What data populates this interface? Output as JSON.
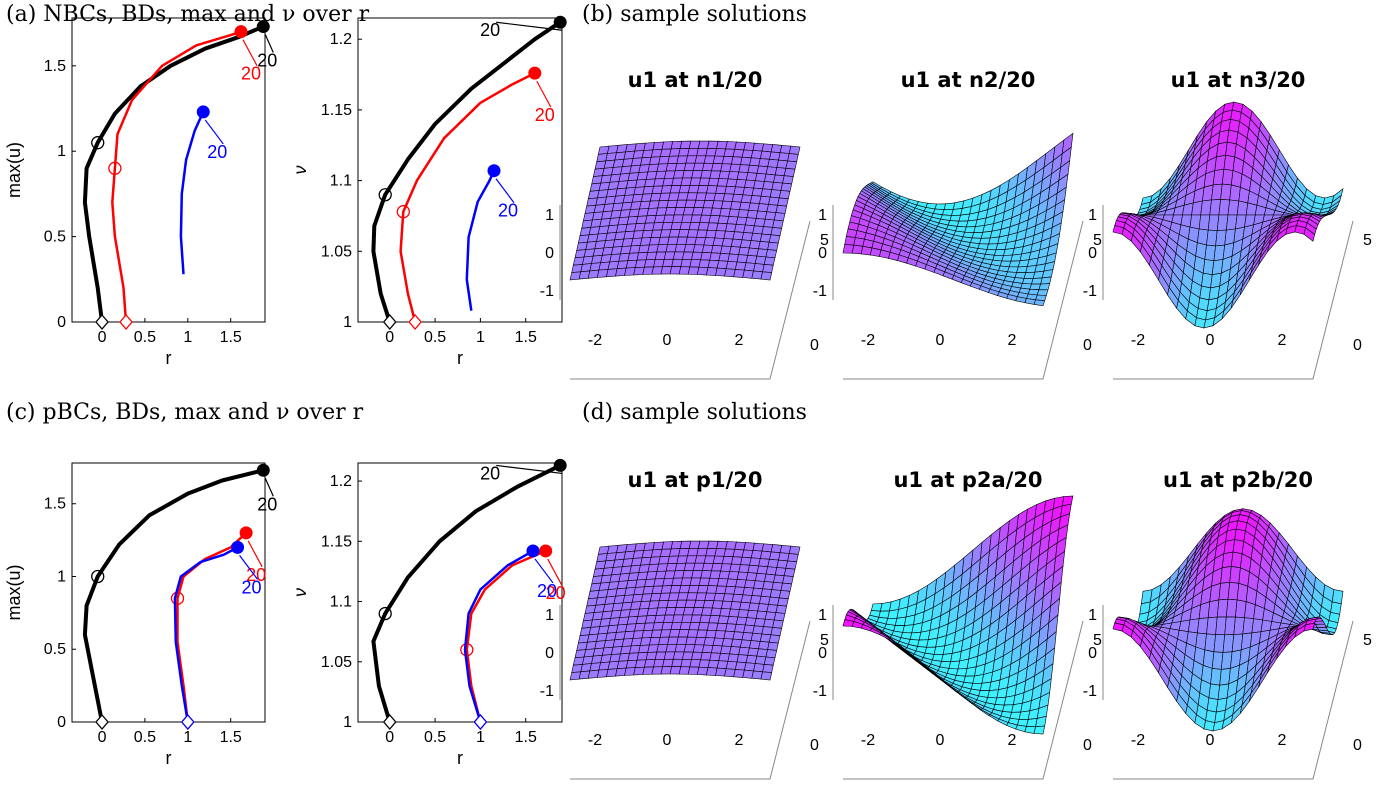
{
  "panels": {
    "a": "(a) NBCs, BDs, max and ν over r",
    "b": "(b) sample solutions",
    "c": "(c) pBCs, BDs, max and ν over r",
    "d": "(d) sample solutions"
  },
  "colors": {
    "black": "#000000",
    "red": "#ff0000",
    "blue": "#0000ff",
    "surface_low": "#33ffff",
    "surface_high": "#ff00ff",
    "mesh": "#000000"
  },
  "surface_titles": [
    "u1 at n1/20",
    "u1 at n2/20",
    "u1 at n3/20",
    "u1 at p1/20",
    "u1 at p2a/20",
    "u1 at p2b/20"
  ],
  "chart_data": [
    {
      "type": "line",
      "id": "a-max",
      "xlabel": "r",
      "ylabel": "max(u)",
      "xlim": [
        -0.35,
        1.9
      ],
      "ylim": [
        0,
        1.78
      ],
      "xticks": [
        "0",
        "0.5",
        "1",
        "1.5"
      ],
      "yticks": [
        "0",
        "0.5",
        "1",
        "1.5"
      ],
      "series": [
        {
          "color": "black",
          "points": [
            [
              0,
              0
            ],
            [
              -0.05,
              0.2
            ],
            [
              -0.15,
              0.5
            ],
            [
              -0.2,
              0.7
            ],
            [
              -0.18,
              0.9
            ],
            [
              -0.05,
              1.05
            ],
            [
              0.15,
              1.22
            ],
            [
              0.45,
              1.38
            ],
            [
              0.8,
              1.5
            ],
            [
              1.2,
              1.6
            ],
            [
              1.6,
              1.67
            ],
            [
              1.88,
              1.73
            ]
          ],
          "start_label": "0",
          "end_label": "20"
        },
        {
          "color": "red",
          "points": [
            [
              0.28,
              0
            ],
            [
              0.25,
              0.2
            ],
            [
              0.15,
              0.5
            ],
            [
              0.12,
              0.7
            ],
            [
              0.15,
              0.9
            ],
            [
              0.18,
              1.1
            ],
            [
              0.35,
              1.3
            ],
            [
              0.7,
              1.5
            ],
            [
              1.1,
              1.62
            ],
            [
              1.5,
              1.68
            ],
            [
              1.62,
              1.7
            ]
          ],
          "end_label": "20"
        },
        {
          "color": "blue",
          "points": [
            [
              0.95,
              0.28
            ],
            [
              0.92,
              0.5
            ],
            [
              0.93,
              0.75
            ],
            [
              0.98,
              0.95
            ],
            [
              1.08,
              1.12
            ],
            [
              1.18,
              1.23
            ]
          ],
          "end_label": "20"
        }
      ]
    },
    {
      "type": "line",
      "id": "a-nu",
      "xlabel": "r",
      "ylabel": "ν",
      "xlim": [
        -0.35,
        1.9
      ],
      "ylim": [
        1,
        1.215
      ],
      "xticks": [
        "0",
        "0.5",
        "1",
        "1.5"
      ],
      "yticks": [
        "1",
        "1.05",
        "1.1",
        "1.15",
        "1.2"
      ],
      "series": [
        {
          "color": "black",
          "points": [
            [
              0,
              1
            ],
            [
              -0.1,
              1.02
            ],
            [
              -0.18,
              1.05
            ],
            [
              -0.17,
              1.068
            ],
            [
              -0.05,
              1.09
            ],
            [
              0.2,
              1.115
            ],
            [
              0.5,
              1.14
            ],
            [
              0.9,
              1.165
            ],
            [
              1.3,
              1.185
            ],
            [
              1.6,
              1.2
            ],
            [
              1.88,
              1.212
            ]
          ],
          "end_label": "20"
        },
        {
          "color": "red",
          "points": [
            [
              0.28,
              1
            ],
            [
              0.2,
              1.02
            ],
            [
              0.12,
              1.05
            ],
            [
              0.15,
              1.078
            ],
            [
              0.3,
              1.1
            ],
            [
              0.6,
              1.13
            ],
            [
              1.0,
              1.155
            ],
            [
              1.35,
              1.168
            ],
            [
              1.6,
              1.176
            ]
          ],
          "end_label": "20"
        },
        {
          "color": "blue",
          "points": [
            [
              0.9,
              1.008
            ],
            [
              0.85,
              1.03
            ],
            [
              0.87,
              1.06
            ],
            [
              0.97,
              1.085
            ],
            [
              1.1,
              1.1
            ],
            [
              1.15,
              1.107
            ]
          ],
          "end_label": "20"
        }
      ]
    },
    {
      "type": "line",
      "id": "c-max",
      "xlabel": "r",
      "ylabel": "max(u)",
      "xlim": [
        -0.35,
        1.9
      ],
      "ylim": [
        0,
        1.78
      ],
      "xticks": [
        "0",
        "0.5",
        "1",
        "1.5"
      ],
      "yticks": [
        "0",
        "0.5",
        "1",
        "1.5"
      ],
      "series": [
        {
          "color": "black",
          "points": [
            [
              0,
              0
            ],
            [
              -0.1,
              0.3
            ],
            [
              -0.2,
              0.6
            ],
            [
              -0.18,
              0.8
            ],
            [
              -0.05,
              1.0
            ],
            [
              0.2,
              1.22
            ],
            [
              0.55,
              1.42
            ],
            [
              1.0,
              1.57
            ],
            [
              1.4,
              1.66
            ],
            [
              1.88,
              1.73
            ]
          ],
          "end_label": "20"
        },
        {
          "color": "red",
          "points": [
            [
              1.0,
              0
            ],
            [
              0.95,
              0.25
            ],
            [
              0.88,
              0.55
            ],
            [
              0.88,
              0.85
            ],
            [
              0.95,
              1.0
            ],
            [
              1.2,
              1.12
            ],
            [
              1.5,
              1.2
            ],
            [
              1.68,
              1.3
            ]
          ],
          "end_label": "20"
        },
        {
          "color": "blue",
          "points": [
            [
              1.0,
              0
            ],
            [
              0.93,
              0.25
            ],
            [
              0.86,
              0.55
            ],
            [
              0.85,
              0.85
            ],
            [
              0.92,
              1.0
            ],
            [
              1.15,
              1.1
            ],
            [
              1.42,
              1.15
            ],
            [
              1.58,
              1.2
            ]
          ],
          "end_label": "20"
        }
      ]
    },
    {
      "type": "line",
      "id": "c-nu",
      "xlabel": "r",
      "ylabel": "ν",
      "xlim": [
        -0.35,
        1.9
      ],
      "ylim": [
        1,
        1.215
      ],
      "xticks": [
        "0",
        "0.5",
        "1",
        "1.5"
      ],
      "yticks": [
        "1",
        "1.05",
        "1.1",
        "1.15",
        "1.2"
      ],
      "series": [
        {
          "color": "black",
          "points": [
            [
              0,
              1
            ],
            [
              -0.12,
              1.03
            ],
            [
              -0.18,
              1.067
            ],
            [
              -0.05,
              1.09
            ],
            [
              0.2,
              1.12
            ],
            [
              0.55,
              1.15
            ],
            [
              0.95,
              1.175
            ],
            [
              1.4,
              1.195
            ],
            [
              1.88,
              1.213
            ]
          ],
          "end_label": "20"
        },
        {
          "color": "red",
          "points": [
            [
              1.0,
              1
            ],
            [
              0.9,
              1.03
            ],
            [
              0.85,
              1.06
            ],
            [
              0.9,
              1.09
            ],
            [
              1.05,
              1.11
            ],
            [
              1.35,
              1.13
            ],
            [
              1.72,
              1.142
            ]
          ],
          "end_label": "20"
        },
        {
          "color": "blue",
          "points": [
            [
              1.0,
              1
            ],
            [
              0.88,
              1.03
            ],
            [
              0.83,
              1.06
            ],
            [
              0.87,
              1.09
            ],
            [
              1.0,
              1.11
            ],
            [
              1.3,
              1.13
            ],
            [
              1.58,
              1.142
            ]
          ],
          "end_label": "20"
        }
      ]
    }
  ],
  "surfaces": [
    {
      "ztick_labels": [
        "1",
        "0",
        "-1"
      ],
      "xtick_labels": [
        "-2",
        "0",
        "2"
      ],
      "ytick_labels": [
        "5",
        "0"
      ],
      "pattern": "flat"
    },
    {
      "ztick_labels": [
        "1",
        "0",
        "-1"
      ],
      "xtick_labels": [
        "-2",
        "0",
        "2"
      ],
      "ytick_labels": [
        "5",
        "0"
      ],
      "pattern": "n2"
    },
    {
      "ztick_labels": [
        "1",
        "0",
        "-1"
      ],
      "xtick_labels": [
        "-2",
        "0",
        "2"
      ],
      "ytick_labels": [
        "5",
        "0"
      ],
      "pattern": "n3"
    },
    {
      "ztick_labels": [
        "1",
        "0",
        "-1"
      ],
      "xtick_labels": [
        "-2",
        "0",
        "2"
      ],
      "ytick_labels": [
        "5",
        "0"
      ],
      "pattern": "flat"
    },
    {
      "ztick_labels": [
        "1",
        "0",
        "-1"
      ],
      "xtick_labels": [
        "-2",
        "0",
        "2"
      ],
      "ytick_labels": [
        "5",
        "0"
      ],
      "pattern": "p2a"
    },
    {
      "ztick_labels": [
        "1",
        "0",
        "-1"
      ],
      "xtick_labels": [
        "-2",
        "0",
        "2"
      ],
      "ytick_labels": [
        "5",
        "0"
      ],
      "pattern": "p2b"
    }
  ]
}
